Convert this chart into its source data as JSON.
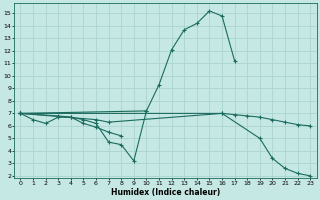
{
  "xlabel": "Humidex (Indice chaleur)",
  "background_color": "#c5e8e4",
  "grid_color": "#aad4cf",
  "line_color": "#1b6b5e",
  "xlim": [
    -0.5,
    23.5
  ],
  "ylim": [
    1.8,
    15.8
  ],
  "xticks": [
    0,
    1,
    2,
    3,
    4,
    5,
    6,
    7,
    8,
    9,
    10,
    11,
    12,
    13,
    14,
    15,
    16,
    17,
    18,
    19,
    20,
    21,
    22,
    23
  ],
  "yticks": [
    2,
    3,
    4,
    5,
    6,
    7,
    8,
    9,
    10,
    11,
    12,
    13,
    14,
    15
  ],
  "line1_x": [
    0,
    10,
    11,
    12,
    13,
    14,
    15,
    16,
    17
  ],
  "line1_y": [
    7.0,
    7.2,
    9.3,
    12.1,
    13.7,
    14.2,
    15.2,
    14.8,
    11.2
  ],
  "line2_x": [
    0,
    16,
    19,
    20,
    21,
    22,
    23
  ],
  "line2_y": [
    7.0,
    7.0,
    5.0,
    3.4,
    2.6,
    2.2,
    2.0
  ],
  "line3_x": [
    0,
    1,
    2,
    3,
    4,
    5,
    6,
    7,
    8,
    9,
    10
  ],
  "line3_y": [
    7.0,
    6.5,
    6.2,
    6.7,
    6.7,
    6.5,
    6.2,
    4.7,
    4.5,
    3.2,
    7.2
  ],
  "line4_x": [
    0,
    3,
    4,
    5,
    6,
    7,
    8
  ],
  "line4_y": [
    7.0,
    6.8,
    6.7,
    6.2,
    5.9,
    5.5,
    5.2
  ],
  "line5_x": [
    0,
    6,
    7,
    16,
    17,
    18,
    19,
    20,
    21,
    22,
    23
  ],
  "line5_y": [
    7.0,
    6.5,
    6.3,
    7.0,
    6.9,
    6.8,
    6.7,
    6.5,
    6.3,
    6.1,
    6.0
  ]
}
